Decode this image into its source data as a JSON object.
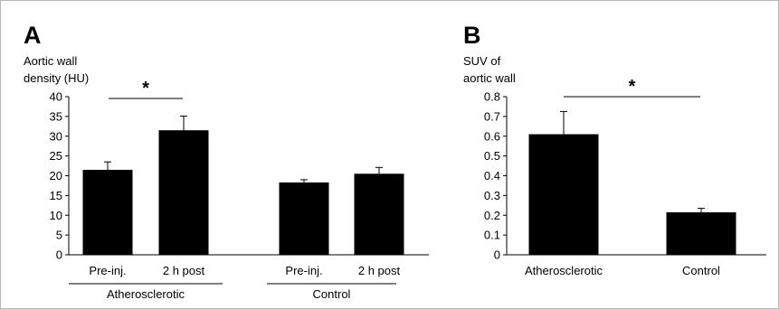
{
  "chart_data": [
    {
      "type": "bar",
      "panel": "A",
      "ylabel_lines": [
        "Aortic wall",
        "density (HU)"
      ],
      "ylim": [
        0,
        40
      ],
      "yticks": [
        "0",
        "5",
        "10",
        "15",
        "20",
        "25",
        "30",
        "35",
        "40"
      ],
      "categories": [
        "Pre-inj.",
        "2 h post",
        "Pre-inj.",
        "2 h post"
      ],
      "groups": [
        "Atherosclerotic",
        "Control"
      ],
      "values": [
        21.5,
        31.5,
        18.3,
        20.5
      ],
      "errors": [
        2.0,
        3.6,
        0.7,
        1.6
      ],
      "significance": "*",
      "bar_color": "#000000"
    },
    {
      "type": "bar",
      "panel": "B",
      "ylabel_lines": [
        "SUV of",
        "aortic wall"
      ],
      "ylim": [
        0,
        0.8
      ],
      "yticks": [
        "0",
        "0.1",
        "0.2",
        "0.3",
        "0.4",
        "0.5",
        "0.6",
        "0.7",
        "0.8"
      ],
      "categories": [
        "Atherosclerotic",
        "Control"
      ],
      "values": [
        0.61,
        0.215
      ],
      "errors": [
        0.115,
        0.02
      ],
      "significance": "*",
      "bar_color": "#000000"
    }
  ]
}
